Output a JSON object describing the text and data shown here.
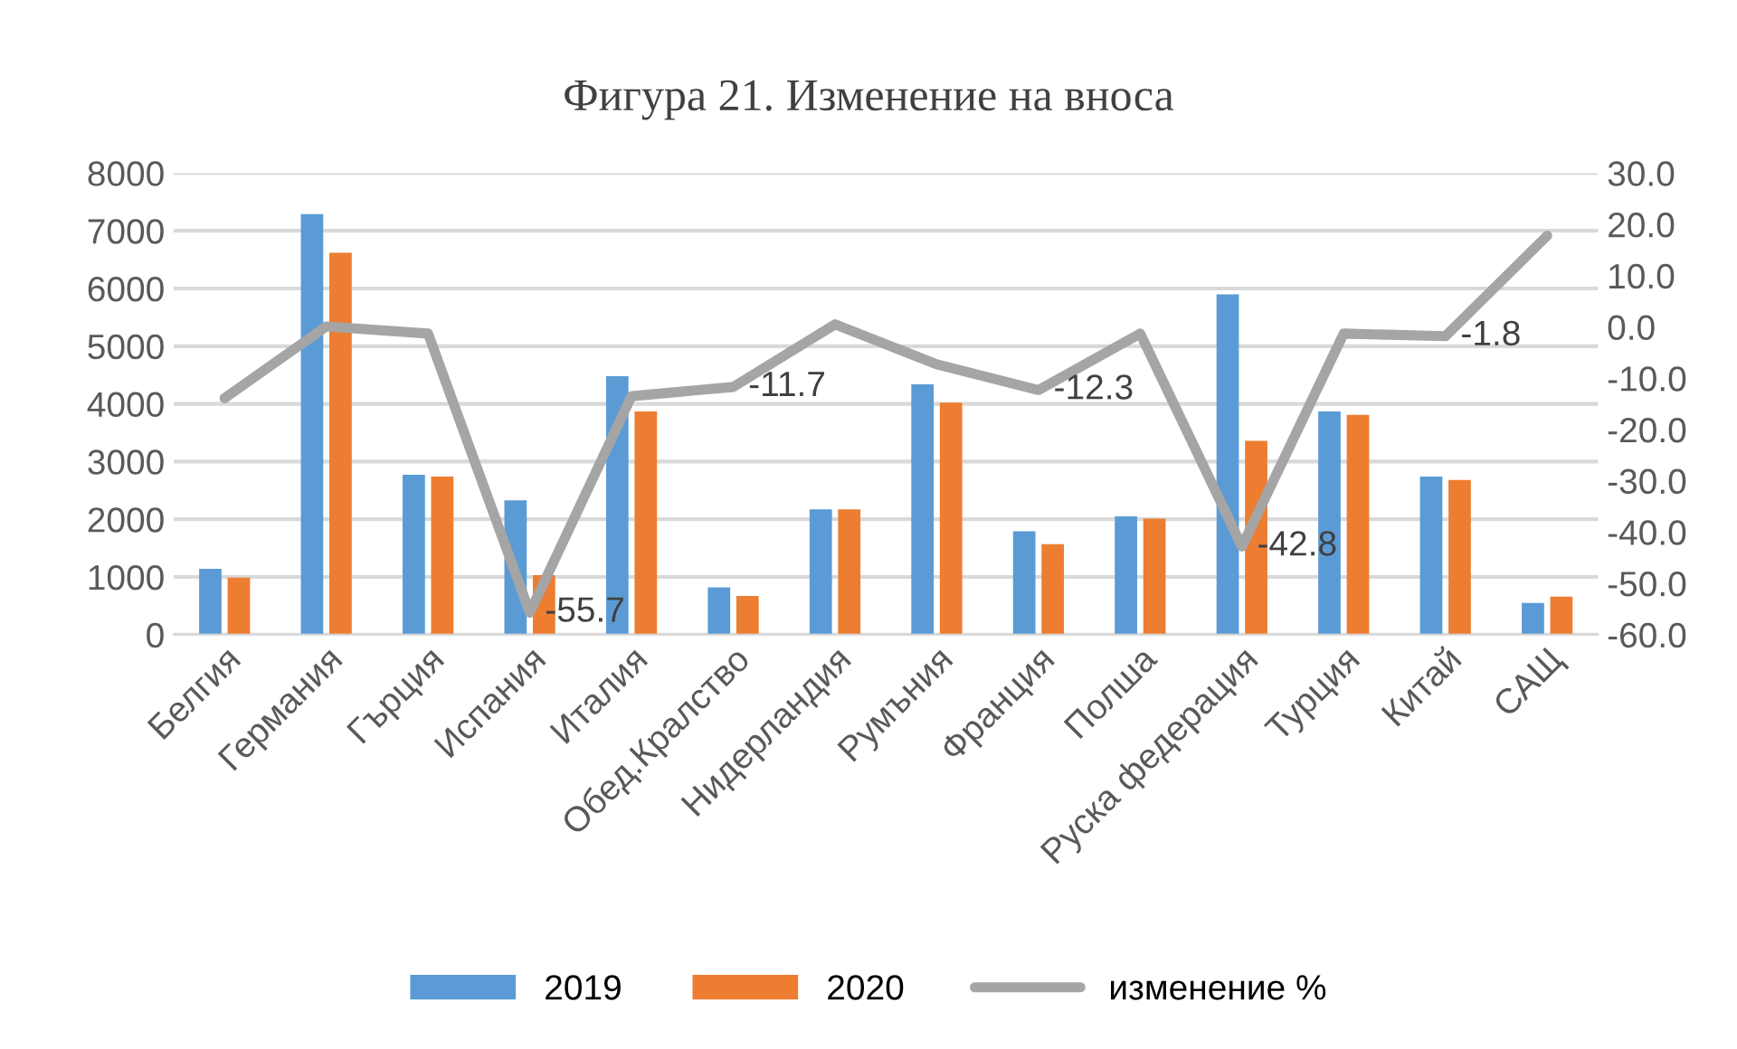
{
  "chart_data": {
    "type": "bar",
    "title": "Фигура 21. Изменение на вноса",
    "categories": [
      "Белгия",
      "Германия",
      "Гърция",
      "Испания",
      "Италия",
      "Обед.Кралство",
      "Нидерландия",
      "Румъния",
      "Франция",
      "Полша",
      "Руска федерация",
      "Турция",
      "Китай",
      "САЩ"
    ],
    "series": [
      {
        "name": "2019",
        "color": "#5b9bd5",
        "values": [
          1140,
          7290,
          2770,
          2330,
          4480,
          820,
          2170,
          4340,
          1790,
          2050,
          5900,
          3870,
          2740,
          550
        ]
      },
      {
        "name": "2020",
        "color": "#ed7d31",
        "values": [
          990,
          6620,
          2740,
          1030,
          3870,
          670,
          2170,
          4020,
          1570,
          2010,
          3360,
          3810,
          2680,
          660
        ]
      },
      {
        "name": "изменение %",
        "type": "line",
        "axis": "y2",
        "color": "#a5a5a5",
        "marker": "none",
        "values": [
          -13.9,
          0.1,
          -1.3,
          -55.7,
          -13.5,
          -11.7,
          0.5,
          -7.3,
          -12.3,
          -1.3,
          -42.8,
          -1.3,
          -1.8,
          17.8
        ],
        "value_labels": [
          null,
          null,
          null,
          "-55.7",
          null,
          "-11.7",
          null,
          null,
          "-12.3",
          null,
          "-42.8",
          null,
          "-1.8",
          null
        ]
      }
    ],
    "ylim": [
      0,
      8000
    ],
    "yticks": [
      0,
      1000,
      2000,
      3000,
      4000,
      5000,
      6000,
      7000,
      8000
    ],
    "y2lim": [
      -60,
      30
    ],
    "y2ticks": [
      {
        "value": -60,
        "label": "-60.0"
      },
      {
        "value": -50,
        "label": "-50.0"
      },
      {
        "value": -40,
        "label": "-40.0"
      },
      {
        "value": -30,
        "label": "-30.0"
      },
      {
        "value": -20,
        "label": "-20.0"
      },
      {
        "value": -10,
        "label": "-10.0"
      },
      {
        "value": 0,
        "label": "0.0"
      },
      {
        "value": 10,
        "label": "10.0"
      },
      {
        "value": 20,
        "label": "20.0"
      },
      {
        "value": 30,
        "label": "30.0"
      }
    ],
    "grid": "y",
    "legend": "bottom"
  }
}
